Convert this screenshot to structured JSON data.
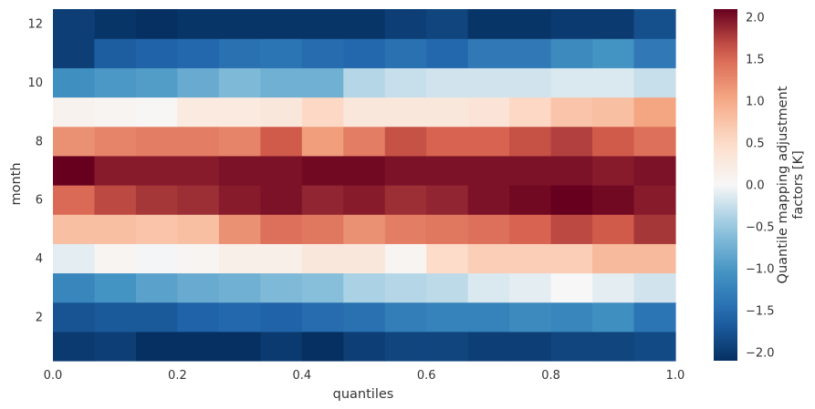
{
  "chart_data": {
    "type": "heatmap",
    "xlabel": "quantiles",
    "ylabel": "month",
    "colorbar_label_lines": [
      "Quantile mapping adjustment",
      "factors [K]"
    ],
    "xlim": [
      0.0,
      1.0
    ],
    "ylim": [
      0.5,
      12.5
    ],
    "x_ticks": [
      "0.0",
      "0.2",
      "0.4",
      "0.6",
      "0.8",
      "1.0"
    ],
    "y_ticks": [
      "2",
      "4",
      "6",
      "8",
      "10",
      "12"
    ],
    "colorbar_ticks": [
      "2.0",
      "1.5",
      "1.0",
      "0.5",
      "0.0",
      "−0.5",
      "−1.0",
      "−1.5",
      "−2.0"
    ],
    "vmin": -2.1,
    "vmax": 2.1,
    "colormap": "RdBu_r",
    "n_quantile_bins": 15,
    "months": [
      1,
      2,
      3,
      4,
      5,
      6,
      7,
      8,
      9,
      10,
      11,
      12
    ],
    "values": [
      [
        -2.0,
        -1.95,
        -2.1,
        -2.1,
        -2.1,
        -2.0,
        -2.1,
        -1.95,
        -1.9,
        -1.9,
        -1.95,
        -1.95,
        -1.9,
        -1.9,
        -1.85
      ],
      [
        -1.75,
        -1.7,
        -1.7,
        -1.6,
        -1.55,
        -1.6,
        -1.5,
        -1.45,
        -1.3,
        -1.25,
        -1.25,
        -1.15,
        -1.2,
        -1.1,
        -1.4
      ],
      [
        -1.2,
        -1.05,
        -0.9,
        -0.8,
        -0.75,
        -0.65,
        -0.6,
        -0.4,
        -0.35,
        -0.3,
        -0.15,
        -0.1,
        0.0,
        -0.1,
        -0.2
      ],
      [
        -0.1,
        0.05,
        -0.02,
        0.05,
        0.15,
        0.15,
        0.3,
        0.3,
        0.05,
        0.5,
        0.65,
        0.65,
        0.65,
        0.85,
        0.85
      ],
      [
        0.8,
        0.8,
        0.75,
        0.8,
        1.2,
        1.45,
        1.4,
        1.2,
        1.35,
        1.4,
        1.45,
        1.55,
        1.7,
        1.6,
        1.8
      ],
      [
        1.5,
        1.7,
        1.8,
        1.85,
        1.95,
        2.0,
        1.9,
        1.95,
        1.85,
        1.9,
        2.0,
        2.05,
        2.15,
        2.05,
        1.95
      ],
      [
        2.15,
        1.95,
        1.95,
        1.95,
        2.0,
        2.0,
        2.05,
        2.05,
        2.0,
        2.0,
        2.0,
        2.0,
        2.0,
        1.95,
        2.0
      ],
      [
        1.2,
        1.3,
        1.35,
        1.35,
        1.3,
        1.6,
        1.1,
        1.35,
        1.65,
        1.55,
        1.55,
        1.65,
        1.75,
        1.6,
        1.45
      ],
      [
        0.1,
        0.05,
        0.02,
        0.25,
        0.25,
        0.3,
        0.55,
        0.3,
        0.3,
        0.3,
        0.35,
        0.55,
        0.75,
        0.8,
        1.05
      ],
      [
        -1.1,
        -1.0,
        -0.95,
        -0.8,
        -0.65,
        -0.75,
        -0.75,
        -0.35,
        -0.25,
        -0.2,
        -0.2,
        -0.2,
        -0.15,
        -0.15,
        -0.25
      ],
      [
        -1.95,
        -1.65,
        -1.6,
        -1.55,
        -1.45,
        -1.4,
        -1.5,
        -1.55,
        -1.45,
        -1.55,
        -1.35,
        -1.35,
        -1.15,
        -1.05,
        -1.35
      ],
      [
        -1.95,
        -2.05,
        -2.1,
        -2.05,
        -2.05,
        -2.05,
        -2.05,
        -2.05,
        -1.95,
        -1.9,
        -2.05,
        -2.05,
        -2.0,
        -2.0,
        -1.8
      ]
    ]
  }
}
